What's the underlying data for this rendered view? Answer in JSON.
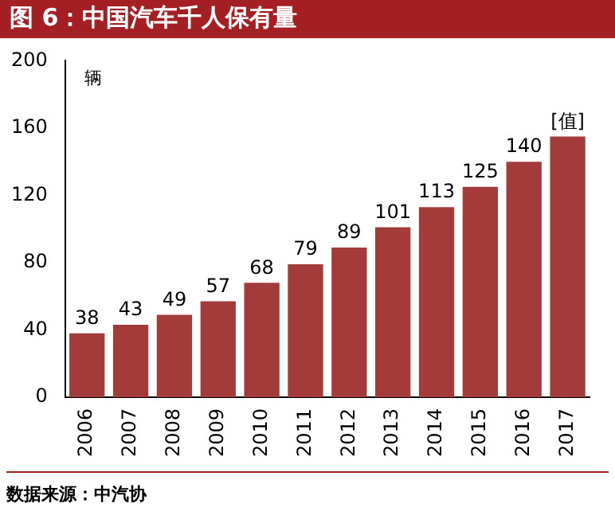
{
  "chart_data": {
    "type": "bar",
    "title": "图 6：中国汽车千人保有量",
    "categories": [
      "2006",
      "2007",
      "2008",
      "2009",
      "2010",
      "2011",
      "2012",
      "2013",
      "2014",
      "2015",
      "2016",
      "2017"
    ],
    "values": [
      38,
      43,
      49,
      57,
      68,
      79,
      89,
      101,
      113,
      125,
      140,
      155
    ],
    "value_labels": [
      "38",
      "43",
      "49",
      "57",
      "68",
      "79",
      "89",
      "101",
      "113",
      "125",
      "140",
      "[值]"
    ],
    "color": "#a33b3b",
    "ylim": [
      0,
      200
    ],
    "yticks": [
      0,
      40,
      80,
      120,
      160,
      200
    ],
    "grid": false,
    "legend": false,
    "annotations": [
      "辆",
      "数据来源：中汽协"
    ]
  }
}
